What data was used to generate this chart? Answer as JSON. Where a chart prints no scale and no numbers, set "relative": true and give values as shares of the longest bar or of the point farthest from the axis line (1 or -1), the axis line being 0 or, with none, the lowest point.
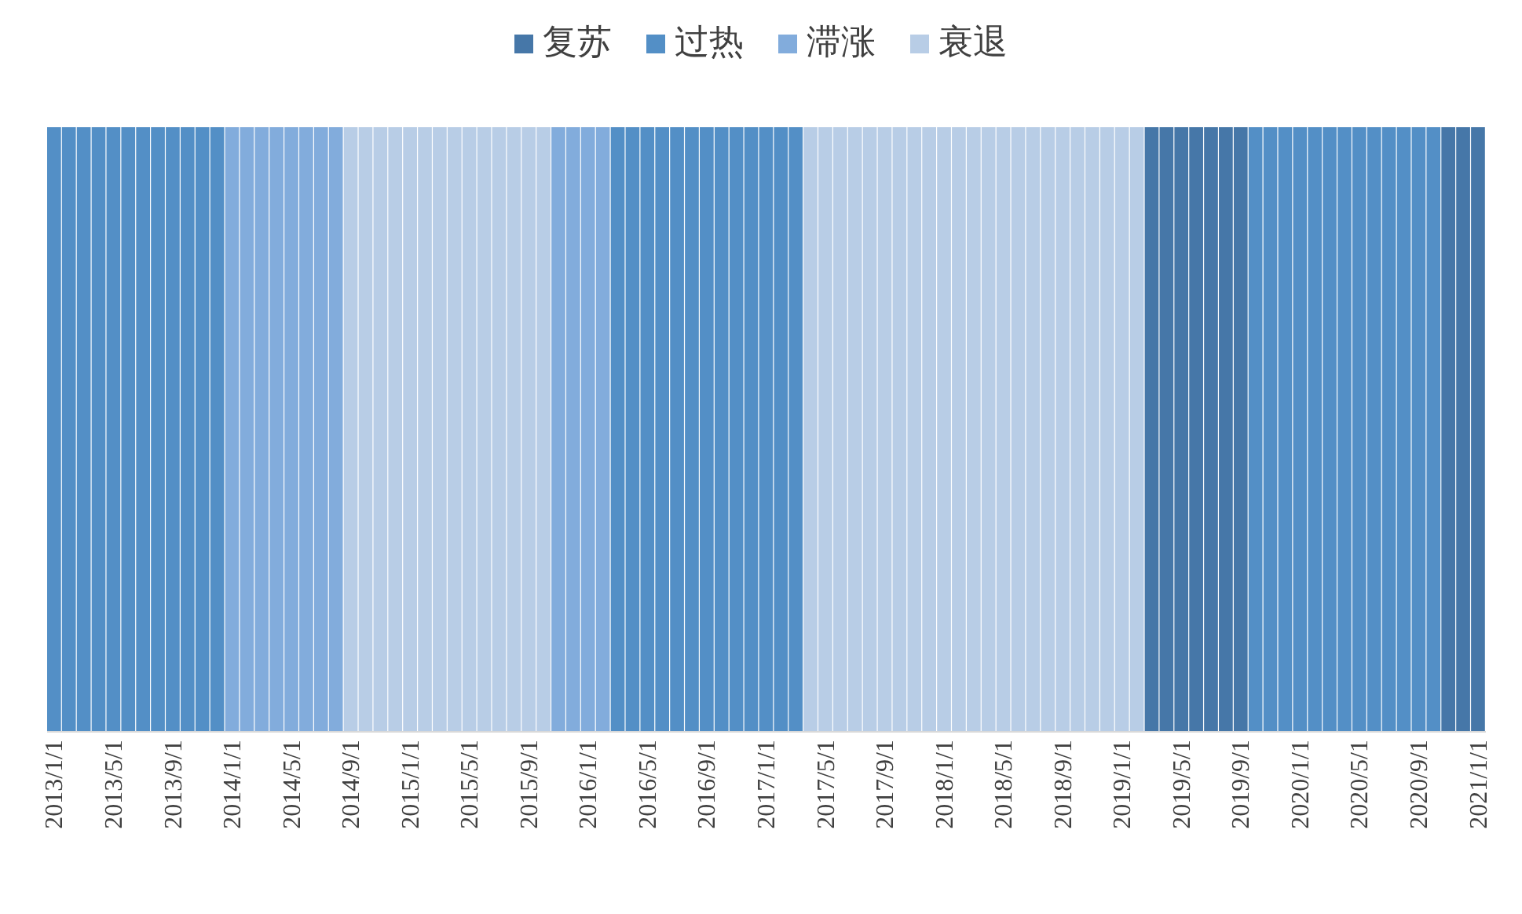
{
  "chart_data": {
    "type": "bar",
    "stacked": true,
    "relative": true,
    "legend": "top",
    "categories": [
      "2013/1/1",
      null,
      null,
      null,
      "2013/5/1",
      null,
      null,
      null,
      "2013/9/1",
      null,
      null,
      null,
      "2014/1/1",
      null,
      null,
      null,
      "2014/5/1",
      null,
      null,
      null,
      "2014/9/1",
      null,
      null,
      null,
      "2015/1/1",
      null,
      null,
      null,
      "2015/5/1",
      null,
      null,
      null,
      "2015/9/1",
      null,
      null,
      null,
      "2016/1/1",
      null,
      null,
      null,
      "2016/5/1",
      null,
      null,
      null,
      "2016/9/1",
      null,
      null,
      null,
      "2017/1/1",
      null,
      null,
      null,
      "2017/5/1",
      null,
      null,
      null,
      "2017/9/1",
      null,
      null,
      null,
      "2018/1/1",
      null,
      null,
      null,
      "2018/5/1",
      null,
      null,
      null,
      "2018/9/1",
      null,
      null,
      null,
      "2019/1/1",
      null,
      null,
      null,
      "2019/5/1",
      null,
      null,
      null,
      "2019/9/1",
      null,
      null,
      null,
      "2020/1/1",
      null,
      null,
      null,
      "2020/5/1",
      null,
      null,
      null,
      "2020/9/1",
      null,
      null,
      null,
      "2021/1/1"
    ],
    "series": [
      {
        "name": "复苏",
        "color": "#4677a8",
        "values": [
          null,
          null,
          null,
          null,
          null,
          null,
          null,
          null,
          null,
          null,
          null,
          null,
          null,
          null,
          null,
          null,
          null,
          null,
          null,
          null,
          null,
          null,
          null,
          null,
          null,
          null,
          null,
          null,
          null,
          null,
          null,
          null,
          null,
          null,
          null,
          null,
          null,
          null,
          null,
          null,
          null,
          null,
          null,
          null,
          null,
          null,
          null,
          null,
          null,
          null,
          null,
          null,
          null,
          null,
          null,
          null,
          null,
          null,
          null,
          null,
          null,
          null,
          null,
          null,
          null,
          null,
          null,
          null,
          null,
          null,
          null,
          null,
          null,
          null,
          1,
          1,
          1,
          1,
          1,
          1,
          1,
          null,
          null,
          null,
          null,
          null,
          null,
          null,
          null,
          null,
          null,
          null,
          null,
          null,
          1,
          1,
          1
        ]
      },
      {
        "name": "过热",
        "color": "#538fc6",
        "values": [
          1,
          1,
          1,
          1,
          1,
          1,
          1,
          1,
          1,
          1,
          1,
          1,
          null,
          null,
          null,
          null,
          null,
          null,
          null,
          null,
          null,
          null,
          null,
          null,
          null,
          null,
          null,
          null,
          null,
          null,
          null,
          null,
          null,
          null,
          null,
          null,
          null,
          null,
          1,
          1,
          1,
          1,
          1,
          1,
          1,
          1,
          1,
          1,
          1,
          1,
          1,
          null,
          null,
          null,
          null,
          null,
          null,
          null,
          null,
          null,
          null,
          null,
          null,
          null,
          null,
          null,
          null,
          null,
          null,
          null,
          null,
          null,
          null,
          null,
          null,
          null,
          null,
          null,
          null,
          null,
          null,
          1,
          1,
          1,
          1,
          1,
          1,
          1,
          1,
          1,
          1,
          1,
          1,
          1,
          null,
          null,
          null
        ]
      },
      {
        "name": "滞涨",
        "color": "#82acdc",
        "values": [
          null,
          null,
          null,
          null,
          null,
          null,
          null,
          null,
          null,
          null,
          null,
          null,
          1,
          1,
          1,
          1,
          1,
          1,
          1,
          1,
          null,
          null,
          null,
          null,
          null,
          null,
          null,
          null,
          null,
          null,
          null,
          null,
          null,
          null,
          1,
          1,
          1,
          1,
          null,
          null,
          null,
          null,
          null,
          null,
          null,
          null,
          null,
          null,
          null,
          null,
          null,
          null,
          null,
          null,
          null,
          null,
          null,
          null,
          null,
          null,
          null,
          null,
          null,
          null,
          null,
          null,
          null,
          null,
          null,
          null,
          null,
          null,
          null,
          null,
          null,
          null,
          null,
          null,
          null,
          null,
          null,
          null,
          null,
          null,
          null,
          null,
          null,
          null,
          null,
          null,
          null,
          null,
          null,
          null,
          null,
          null,
          null
        ]
      },
      {
        "name": "衰退",
        "color": "#b8cde6",
        "values": [
          null,
          null,
          null,
          null,
          null,
          null,
          null,
          null,
          null,
          null,
          null,
          null,
          null,
          null,
          null,
          null,
          null,
          null,
          null,
          null,
          1,
          1,
          1,
          1,
          1,
          1,
          1,
          1,
          1,
          1,
          1,
          1,
          1,
          1,
          null,
          null,
          null,
          null,
          null,
          null,
          null,
          null,
          null,
          null,
          null,
          null,
          null,
          null,
          null,
          null,
          null,
          1,
          1,
          1,
          1,
          1,
          1,
          1,
          1,
          1,
          1,
          1,
          1,
          1,
          1,
          1,
          1,
          1,
          1,
          1,
          1,
          1,
          1,
          1,
          null,
          null,
          null,
          null,
          null,
          null,
          null,
          null,
          null,
          null,
          null,
          null,
          null,
          null,
          null,
          null,
          null,
          null,
          null,
          null,
          null,
          null,
          null
        ]
      }
    ]
  }
}
